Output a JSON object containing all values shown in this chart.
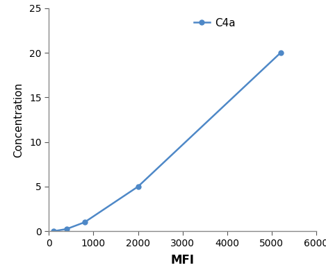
{
  "x": [
    100,
    400,
    800,
    2000,
    5200
  ],
  "y": [
    0,
    0.25,
    1.0,
    5.0,
    20.0
  ],
  "line_color": "#4e88c7",
  "marker": "o",
  "marker_size": 5,
  "legend_label": "C4a",
  "xlabel": "MFI",
  "ylabel": "Concentration",
  "xlim": [
    0,
    6000
  ],
  "ylim": [
    0,
    25
  ],
  "xticks": [
    0,
    1000,
    2000,
    3000,
    4000,
    5000,
    6000
  ],
  "yticks": [
    0,
    5,
    10,
    15,
    20,
    25
  ],
  "xlabel_fontsize": 12,
  "ylabel_fontsize": 11,
  "tick_fontsize": 10,
  "legend_fontsize": 11,
  "background_color": "#ffffff"
}
